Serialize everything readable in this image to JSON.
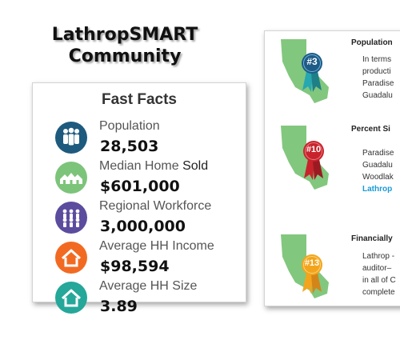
{
  "title": {
    "line1": "LathropSMART",
    "line2": "Community"
  },
  "fast_facts": {
    "heading": "Fast Facts",
    "items": [
      {
        "icon": "people-icon",
        "color": "#1d5a7e",
        "label": "Population",
        "label_extra": "",
        "value": "28,503"
      },
      {
        "icon": "houses-icon",
        "color": "#7cc47a",
        "label": "Median Home",
        "label_extra": "Sold",
        "value": "$601,000"
      },
      {
        "icon": "workforce-icon",
        "color": "#5b4c9e",
        "label": "Regional Workforce",
        "label_extra": "",
        "value": "3,000,000"
      },
      {
        "icon": "house-income-icon",
        "color": "#f26a22",
        "label": "Average HH Income",
        "label_extra": "",
        "value": "$98,594"
      },
      {
        "icon": "house-size-icon",
        "color": "#25a79a",
        "label": "Average HH Size",
        "label_extra": "",
        "value": "3.89"
      }
    ]
  },
  "rankings": [
    {
      "title": "Population",
      "badge": "#3",
      "badge_color": "#1e5b86",
      "ribbon_color": "#27a7b0",
      "lines": [
        "In terms",
        "producti",
        "Paradise",
        "Guadalu"
      ],
      "highlight": -1
    },
    {
      "title": "Percent Si",
      "badge": "#10",
      "badge_color": "#c8232c",
      "ribbon_color": "#c8232c",
      "lines": [
        "Paradise",
        "Guadalu",
        "Woodlak",
        "Lathrop"
      ],
      "highlight": 3
    },
    {
      "title": "Financially",
      "badge": "#13",
      "badge_color": "#f2a51c",
      "ribbon_color": "#f2a51c",
      "lines": [
        "Lathrop -",
        "auditor–",
        "in all of C",
        "complete"
      ],
      "highlight": -1
    }
  ],
  "colors": {
    "map_green": "#82c77e",
    "link_blue": "#1a9ad6"
  }
}
